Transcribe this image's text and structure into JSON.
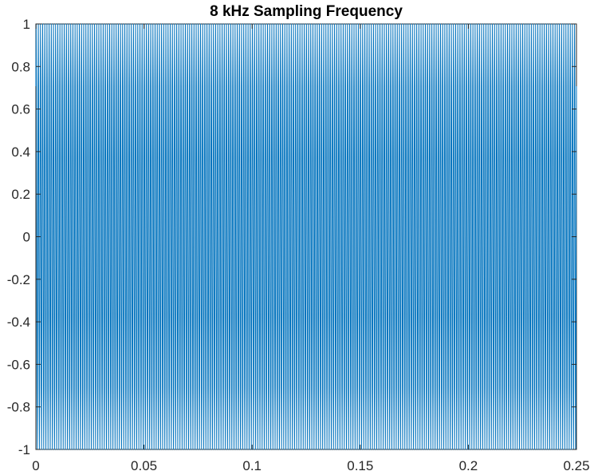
{
  "chart_data": {
    "type": "line",
    "title": "8 kHz Sampling Frequency",
    "xlabel": "",
    "ylabel": "",
    "xlim": [
      0,
      0.25
    ],
    "ylim": [
      -1,
      1
    ],
    "x_ticks": [
      0,
      0.05,
      0.1,
      0.15,
      0.2,
      0.25
    ],
    "x_tick_labels": [
      "0",
      "0.05",
      "0.1",
      "0.15",
      "0.2",
      "0.25"
    ],
    "y_ticks": [
      1,
      0.8,
      0.6,
      0.4,
      0.2,
      0,
      -0.2,
      -0.4,
      -0.6,
      -0.8,
      -1
    ],
    "y_tick_labels": [
      "1",
      "0.8",
      "0.6",
      "0.4",
      "0.2",
      "0",
      "-0.2",
      "-0.4",
      "-0.6",
      "-0.8",
      "-1"
    ],
    "grid": false,
    "series": [
      {
        "color": "#0072BD",
        "signal": "sinusoid, amplitude 1",
        "sampling_rate_hz": 8000,
        "frequency_hz": 1000,
        "x_start": 0,
        "x_end": 0.25
      }
    ]
  }
}
